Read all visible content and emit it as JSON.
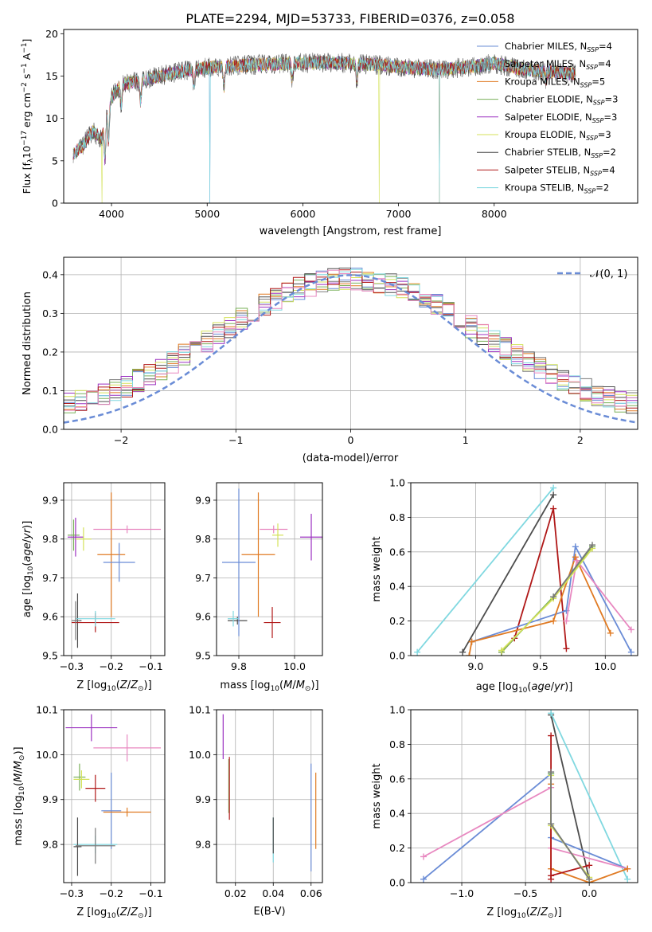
{
  "figure_title": "PLATE=2294, MJD=53733, FIBERID=0376, z=0.058",
  "colors": {
    "grid": "#b0b0b0",
    "chabrier_miles": "#6a8cd6",
    "salpeter_miles": "#7a7a7a",
    "kroupa_miles": "#e07a22",
    "chabrier_elodie": "#7ab05a",
    "salpeter_elodie": "#9b30c0",
    "kroupa_elodie": "#d4e25a",
    "chabrier_stelib": "#4d4d4d",
    "salpeter_stelib": "#b01818",
    "kroupa_stelib": "#80d8e0",
    "pink": "#e888c0"
  },
  "chart_data": [
    {
      "id": "spectrum",
      "type": "line",
      "title": "PLATE=2294, MJD=53733, FIBERID=0376, z=0.058",
      "xlabel": "wavelength [Angstrom, rest frame]",
      "ylabel": "Flux [f_λ 10^-17 erg cm^-2 s^-1 A^-1]",
      "xlim": [
        3500,
        9500
      ],
      "ylim": [
        0,
        20.5
      ],
      "xticks": [
        4000,
        5000,
        6000,
        7000,
        8000
      ],
      "yticks": [
        0,
        5,
        10,
        15,
        20
      ],
      "grid": false,
      "legend_position": "right",
      "legend": [
        {
          "label": "Chabrier MILES, N",
          "sub": "SSP",
          "tail": "=4",
          "color": "#6a8cd6"
        },
        {
          "label": "Salpeter MILES, N",
          "sub": "SSP",
          "tail": "=4",
          "color": "#7a7a7a"
        },
        {
          "label": "Kroupa MILES, N",
          "sub": "SSP",
          "tail": "=5",
          "color": "#e07a22"
        },
        {
          "label": "Chabrier ELODIE, N",
          "sub": "SSP",
          "tail": "=3",
          "color": "#7ab05a"
        },
        {
          "label": "Salpeter ELODIE, N",
          "sub": "SSP",
          "tail": "=3",
          "color": "#9b30c0"
        },
        {
          "label": "Kroupa ELODIE, N",
          "sub": "SSP",
          "tail": "=3",
          "color": "#d4e25a"
        },
        {
          "label": "Chabrier STELIB, N",
          "sub": "SSP",
          "tail": "=2",
          "color": "#4d4d4d"
        },
        {
          "label": "Salpeter STELIB, N",
          "sub": "SSP",
          "tail": "=4",
          "color": "#b01818"
        },
        {
          "label": "Kroupa STELIB, N",
          "sub": "SSP",
          "tail": "=2",
          "color": "#80d8e0"
        }
      ],
      "continuum": {
        "x": [
          3600,
          3700,
          3800,
          3900,
          3950,
          4000,
          4100,
          4300,
          4500,
          4700,
          5000,
          5300,
          5600,
          5900,
          6200,
          6500,
          6800,
          7100,
          7400,
          7700,
          8000,
          8300,
          8600,
          8900
        ],
        "y": [
          5.8,
          6.8,
          8.5,
          7.5,
          11.5,
          12.5,
          14,
          14.5,
          15,
          15.5,
          16,
          16.2,
          16.4,
          16.5,
          16.6,
          16.5,
          16.3,
          16,
          15.8,
          16,
          16.5,
          15.8,
          15.5,
          15.2
        ]
      }
    },
    {
      "id": "residuals",
      "type": "histogram",
      "xlabel": "(data-model)/error",
      "ylabel": "Normed distribution",
      "xlim": [
        -2.5,
        2.5
      ],
      "ylim": [
        0,
        0.445
      ],
      "xticks": [
        -2,
        -1,
        0,
        1,
        2
      ],
      "yticks": [
        0.0,
        0.1,
        0.2,
        0.3,
        0.4
      ],
      "grid": true,
      "legend": [
        {
          "label": "N(0,1)",
          "color": "#6a8cd6",
          "style": "dashed"
        }
      ],
      "bin_width": 0.1,
      "series_seed": [
        {
          "color": "#6a8cd6",
          "seed": 1
        },
        {
          "color": "#7a7a7a",
          "seed": 2
        },
        {
          "color": "#e07a22",
          "seed": 3
        },
        {
          "color": "#7ab05a",
          "seed": 4
        },
        {
          "color": "#9b30c0",
          "seed": 5
        },
        {
          "color": "#d4e25a",
          "seed": 6
        },
        {
          "color": "#4d4d4d",
          "seed": 7
        },
        {
          "color": "#b01818",
          "seed": 8
        },
        {
          "color": "#80d8e0",
          "seed": 9
        },
        {
          "color": "#e888c0",
          "seed": 10
        }
      ]
    },
    {
      "id": "age_vs_Z",
      "type": "errorbar",
      "xlabel": "Z [log10(Z/Z⊙)]",
      "ylabel": "age [log10(age/yr)]",
      "xlim": [
        -0.32,
        -0.065
      ],
      "ylim": [
        9.5,
        9.945
      ],
      "xticks": [
        -0.3,
        -0.2,
        -0.1
      ],
      "yticks": [
        9.5,
        9.6,
        9.7,
        9.8,
        9.9
      ],
      "grid": true,
      "points": [
        {
          "x": -0.295,
          "y": 9.81,
          "xerr": 0.015,
          "yerr": 0.04,
          "color": "#7ab05a"
        },
        {
          "x": -0.29,
          "y": 9.805,
          "xerr": 0.02,
          "yerr": 0.05,
          "color": "#9b30c0"
        },
        {
          "x": -0.285,
          "y": 9.59,
          "xerr": 0.01,
          "yerr": 0.07,
          "color": "#4d4d4d"
        },
        {
          "x": -0.2,
          "y": 9.76,
          "xerr": 0.035,
          "yerr": 0.16,
          "color": "#e07a22"
        },
        {
          "x": -0.18,
          "y": 9.74,
          "xerr": 0.04,
          "yerr": 0.05,
          "color": "#6a8cd6"
        },
        {
          "x": -0.16,
          "y": 9.825,
          "xerr": 0.085,
          "yerr": 0.01,
          "color": "#e888c0"
        },
        {
          "x": -0.24,
          "y": 9.585,
          "xerr": 0.06,
          "yerr": 0.025,
          "color": "#b01818"
        },
        {
          "x": -0.24,
          "y": 9.595,
          "xerr": 0.05,
          "yerr": 0.02,
          "color": "#80d8e0"
        },
        {
          "x": -0.27,
          "y": 9.8,
          "xerr": 0.02,
          "yerr": 0.03,
          "color": "#d4e25a"
        },
        {
          "x": -0.29,
          "y": 9.59,
          "xerr": 0.01,
          "yerr": 0.05,
          "color": "#7a7a7a"
        }
      ]
    },
    {
      "id": "age_vs_mass",
      "type": "errorbar",
      "xlabel": "mass [log10(M/M⊙)]",
      "ylabel": "",
      "xlim": [
        9.72,
        10.1
      ],
      "ylim": [
        9.5,
        9.945
      ],
      "xticks": [
        9.8,
        10.0
      ],
      "yticks": [
        9.5,
        9.6,
        9.7,
        9.8,
        9.9
      ],
      "grid": true,
      "points": [
        {
          "x": 9.795,
          "y": 9.59,
          "xerr": 0.035,
          "yerr": 0.01,
          "color": "#4d4d4d"
        },
        {
          "x": 9.8,
          "y": 9.74,
          "xerr": 0.06,
          "yerr": 0.19,
          "color": "#6a8cd6"
        },
        {
          "x": 9.87,
          "y": 9.76,
          "xerr": 0.06,
          "yerr": 0.16,
          "color": "#e07a22"
        },
        {
          "x": 9.925,
          "y": 9.825,
          "xerr": 0.05,
          "yerr": 0.01,
          "color": "#e888c0"
        },
        {
          "x": 10.06,
          "y": 9.805,
          "xerr": 0.04,
          "yerr": 0.06,
          "color": "#9b30c0"
        },
        {
          "x": 9.92,
          "y": 9.585,
          "xerr": 0.03,
          "yerr": 0.04,
          "color": "#b01818"
        },
        {
          "x": 9.94,
          "y": 9.81,
          "xerr": 0.02,
          "yerr": 0.03,
          "color": "#d4e25a"
        },
        {
          "x": 9.78,
          "y": 9.595,
          "xerr": 0.02,
          "yerr": 0.02,
          "color": "#80d8e0"
        }
      ]
    },
    {
      "id": "weight_vs_age",
      "type": "line",
      "xlabel": "age [log10(age/yr)]",
      "ylabel": "mass weight",
      "xlim": [
        8.5,
        10.25
      ],
      "ylim": [
        0,
        1
      ],
      "xticks": [
        9.0,
        9.5,
        10.0
      ],
      "yticks": [
        0.0,
        0.2,
        0.4,
        0.6,
        0.8,
        1.0
      ],
      "grid": true,
      "series": [
        {
          "color": "#80d8e0",
          "x": [
            8.55,
            9.6
          ],
          "y": [
            0.02,
            0.97
          ]
        },
        {
          "color": "#4d4d4d",
          "x": [
            8.9,
            9.6
          ],
          "y": [
            0.02,
            0.93
          ]
        },
        {
          "color": "#b01818",
          "x": [
            9.2,
            9.3,
            9.6,
            9.7
          ],
          "y": [
            0.02,
            0.1,
            0.85,
            0.04
          ]
        },
        {
          "color": "#6a8cd6",
          "x": [
            8.97,
            9.7,
            9.77,
            10.2
          ],
          "y": [
            0.08,
            0.26,
            0.63,
            0.02
          ]
        },
        {
          "color": "#e07a22",
          "x": [
            8.95,
            8.97,
            9.6,
            9.77,
            10.04
          ],
          "y": [
            0.0,
            0.08,
            0.2,
            0.57,
            0.13
          ]
        },
        {
          "color": "#e888c0",
          "x": [
            9.7,
            9.78,
            10.2
          ],
          "y": [
            0.2,
            0.55,
            0.15
          ]
        },
        {
          "color": "#7ab05a",
          "x": [
            9.2,
            9.6,
            9.9
          ],
          "y": [
            0.02,
            0.34,
            0.63
          ]
        },
        {
          "color": "#d4e25a",
          "x": [
            9.2,
            9.6,
            9.9
          ],
          "y": [
            0.03,
            0.33,
            0.62
          ]
        },
        {
          "color": "#7a7a7a",
          "x": [
            9.6,
            9.9
          ],
          "y": [
            0.34,
            0.64
          ]
        }
      ]
    },
    {
      "id": "mass_vs_Z",
      "type": "errorbar",
      "xlabel": "Z [log10(Z/Z⊙)]",
      "ylabel": "mass [log10(M/M⊙)]",
      "xlim": [
        -0.32,
        -0.065
      ],
      "ylim": [
        9.715,
        10.1
      ],
      "xticks": [
        -0.3,
        -0.2,
        -0.1
      ],
      "yticks": [
        9.8,
        9.9,
        10.0,
        10.1
      ],
      "grid": true,
      "points": [
        {
          "x": -0.25,
          "y": 10.06,
          "xerr": 0.065,
          "yerr": 0.03,
          "color": "#9b30c0"
        },
        {
          "x": -0.16,
          "y": 10.015,
          "xerr": 0.085,
          "yerr": 0.03,
          "color": "#e888c0"
        },
        {
          "x": -0.28,
          "y": 9.95,
          "xerr": 0.015,
          "yerr": 0.03,
          "color": "#7ab05a"
        },
        {
          "x": -0.275,
          "y": 9.945,
          "xerr": 0.02,
          "yerr": 0.02,
          "color": "#d4e25a"
        },
        {
          "x": -0.24,
          "y": 9.925,
          "xerr": 0.025,
          "yerr": 0.03,
          "color": "#b01818"
        },
        {
          "x": -0.2,
          "y": 9.875,
          "xerr": 0.025,
          "yerr": 0.085,
          "color": "#6a8cd6"
        },
        {
          "x": -0.16,
          "y": 9.872,
          "xerr": 0.06,
          "yerr": 0.01,
          "color": "#e07a22"
        },
        {
          "x": -0.24,
          "y": 9.8,
          "xerr": 0.055,
          "yerr": 0.02,
          "color": "#80d8e0"
        },
        {
          "x": -0.285,
          "y": 9.795,
          "xerr": 0.01,
          "yerr": 0.065,
          "color": "#4d4d4d"
        },
        {
          "x": -0.24,
          "y": 9.797,
          "xerr": 0.05,
          "yerr": 0.04,
          "color": "#7a7a7a"
        }
      ]
    },
    {
      "id": "mass_vs_ebv",
      "type": "errorbar",
      "xlabel": "E(B-V)",
      "ylabel": "",
      "xlim": [
        0.01,
        0.066
      ],
      "ylim": [
        9.715,
        10.1
      ],
      "xticks": [
        0.02,
        0.04,
        0.06
      ],
      "yticks": [
        9.8,
        9.9,
        10.0,
        10.1
      ],
      "grid": true,
      "points": [
        {
          "x": 0.0135,
          "y": 10.04,
          "yerr": 0.05,
          "color": "#9b30c0"
        },
        {
          "x": 0.0165,
          "y": 9.93,
          "yerr": 0.06,
          "color": "#7ab05a"
        },
        {
          "x": 0.0168,
          "y": 9.925,
          "yerr": 0.07,
          "color": "#b01818"
        },
        {
          "x": 0.04,
          "y": 9.81,
          "yerr": 0.05,
          "color": "#80d8e0"
        },
        {
          "x": 0.04,
          "y": 9.82,
          "yerr": 0.04,
          "color": "#4d4d4d"
        },
        {
          "x": 0.06,
          "y": 9.86,
          "yerr": 0.12,
          "color": "#6a8cd6"
        },
        {
          "x": 0.0625,
          "y": 9.875,
          "yerr": 0.085,
          "color": "#e07a22"
        }
      ]
    },
    {
      "id": "weight_vs_Z",
      "type": "line",
      "xlabel": "Z [log10(Z/Z⊙)]",
      "ylabel": "mass weight",
      "xlim": [
        -1.4,
        0.38
      ],
      "ylim": [
        0,
        1
      ],
      "xticks": [
        -1.0,
        -0.5,
        0.0
      ],
      "yticks": [
        0.0,
        0.2,
        0.4,
        0.6,
        0.8,
        1.0
      ],
      "grid": true,
      "series": [
        {
          "color": "#4d4d4d",
          "x": [
            -0.3,
            0.0
          ],
          "y": [
            0.97,
            0.02
          ]
        },
        {
          "color": "#80d8e0",
          "x": [
            -0.3,
            0.3
          ],
          "y": [
            0.98,
            0.02
          ]
        },
        {
          "color": "#6a8cd6",
          "x": [
            -1.3,
            -0.3,
            -0.3,
            0.3
          ],
          "y": [
            0.02,
            0.63,
            0.26,
            0.08
          ]
        },
        {
          "color": "#e888c0",
          "x": [
            -1.3,
            -0.3,
            -0.3,
            0.3
          ],
          "y": [
            0.15,
            0.55,
            0.2,
            0.08
          ]
        },
        {
          "color": "#e07a22",
          "x": [
            -0.3,
            -0.3,
            0.0,
            0.3
          ],
          "y": [
            0.57,
            0.08,
            0.0,
            0.08
          ]
        },
        {
          "color": "#b01818",
          "x": [
            -0.3,
            -0.3,
            -0.3,
            0.0
          ],
          "y": [
            0.85,
            0.02,
            0.04,
            0.1
          ]
        },
        {
          "color": "#7ab05a",
          "x": [
            -0.3,
            -0.3,
            0.0
          ],
          "y": [
            0.63,
            0.34,
            0.02
          ]
        },
        {
          "color": "#d4e25a",
          "x": [
            -0.3,
            -0.3,
            0.0
          ],
          "y": [
            0.62,
            0.33,
            0.03
          ]
        },
        {
          "color": "#7a7a7a",
          "x": [
            -0.3,
            -0.3,
            0.0
          ],
          "y": [
            0.64,
            0.34,
            0.02
          ]
        }
      ]
    }
  ]
}
